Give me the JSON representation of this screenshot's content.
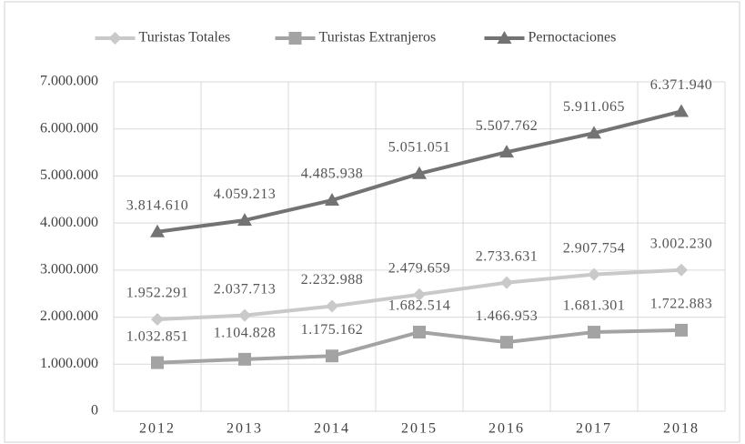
{
  "chart_data": {
    "type": "line",
    "categories": [
      "2012",
      "2013",
      "2014",
      "2015",
      "2016",
      "2017",
      "2018"
    ],
    "series": [
      {
        "name": "Turistas Totales",
        "color": "#c9c9c9",
        "marker": "diamond",
        "values": [
          1952291,
          2037713,
          2232988,
          2479659,
          2733631,
          2907754,
          3002230
        ],
        "value_labels": [
          "1.952.291",
          "2.037.713",
          "2.232.988",
          "2.479.659",
          "2.733.631",
          "2.907.754",
          "3.002.230"
        ]
      },
      {
        "name": "Turistas Extranjeros",
        "color": "#a3a3a3",
        "marker": "square",
        "values": [
          1032851,
          1104828,
          1175162,
          1682514,
          1466953,
          1681301,
          1722883
        ],
        "value_labels": [
          "1.032.851",
          "1.104.828",
          "1.175.162",
          "1.682.514",
          "1.466.953",
          "1.681.301",
          "1.722.883"
        ]
      },
      {
        "name": "Pernoctaciones",
        "color": "#737373",
        "marker": "triangle",
        "values": [
          3814610,
          4059213,
          4485938,
          5051051,
          5507762,
          5911065,
          6371940
        ],
        "value_labels": [
          "3.814.610",
          "4.059.213",
          "4.485.938",
          "5.051.051",
          "5.507.762",
          "5.911.065",
          "6.371.940"
        ]
      }
    ],
    "ylim": [
      0,
      7000000
    ],
    "yticks": [
      0,
      {
        "value": 1000000,
        "label": "1.000.000"
      },
      {
        "value": 2000000,
        "label": "2.000.000"
      },
      {
        "value": 3000000,
        "label": "3.000.000"
      },
      {
        "value": 4000000,
        "label": "4.000.000"
      },
      {
        "value": 5000000,
        "label": "5.000.000"
      },
      {
        "value": 6000000,
        "label": "6.000.000"
      },
      {
        "value": 7000000,
        "label": "7.000.000"
      }
    ],
    "grid": true,
    "legend": "top"
  }
}
